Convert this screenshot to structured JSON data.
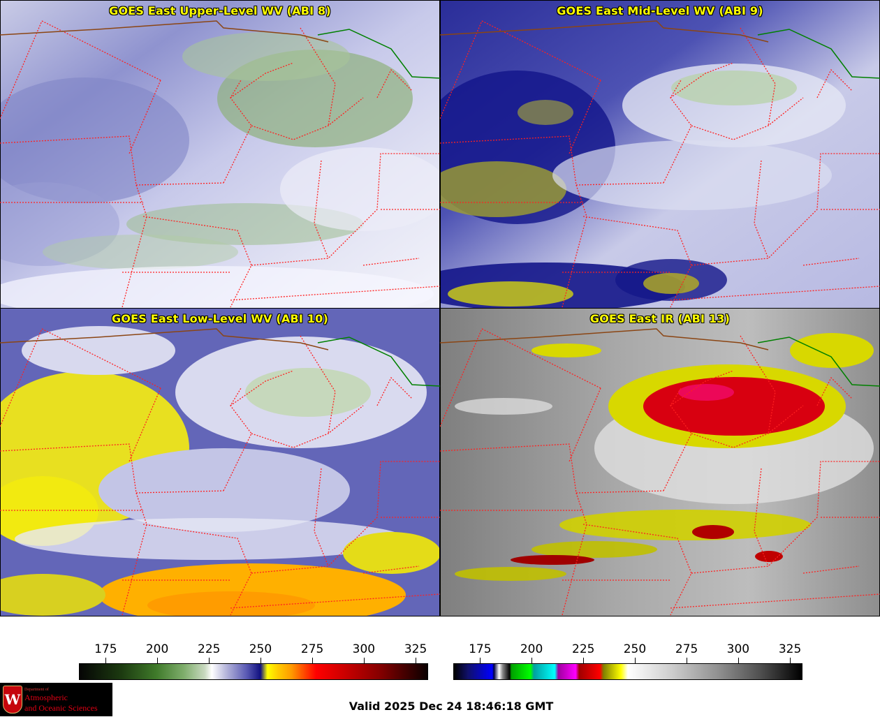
{
  "panels": [
    {
      "id": "p1",
      "title": "GOES East Upper-Level WV (ABI 8)",
      "base": "wv-upper"
    },
    {
      "id": "p2",
      "title": "GOES East Mid-Level WV (ABI 9)",
      "base": "wv-mid"
    },
    {
      "id": "p3",
      "title": "GOES East Low-Level WV (ABI 10)",
      "base": "wv-low"
    },
    {
      "id": "p4",
      "title": "GOES East IR (ABI 13)",
      "base": "ir"
    }
  ],
  "colorbars": {
    "wv": {
      "ticks": [
        "175",
        "200",
        "225",
        "250",
        "275",
        "300",
        "325"
      ]
    },
    "ir": {
      "ticks": [
        "175",
        "200",
        "225",
        "250",
        "275",
        "300",
        "325"
      ]
    }
  },
  "colors": {
    "state_border": "#ff2020",
    "country_border": "#8b4513",
    "lake_border": "#008000"
  },
  "logo": {
    "crest_letter": "W",
    "dept": "Department of",
    "line1": "Atmospheric",
    "line2": "and Oceanic Sciences"
  },
  "valid_time": "Valid 2025 Dec 24 18:46:18 GMT"
}
